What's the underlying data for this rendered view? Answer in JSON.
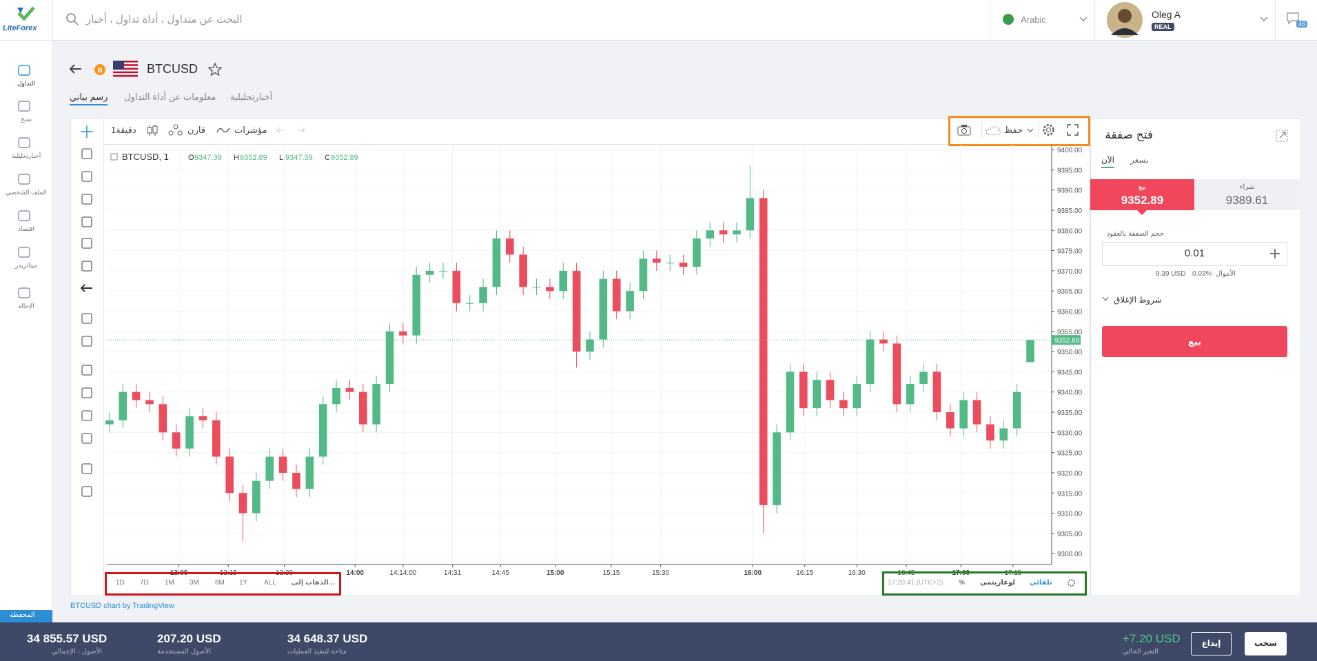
{
  "top_bar": {
    "brand": "LiteForex",
    "search_placeholder": "البحث عن متداول ، أداة تداول ، أخبار",
    "language": "Arabic",
    "user_name": "Oleg A",
    "account_type": "REAL",
    "notifications": 46
  },
  "sidebar": {
    "items": [
      "التداول",
      "نسخ",
      "أخبارتحليلية",
      "الملف الشخصي",
      "اقتصاد",
      "ميتاتريدر",
      "الإحالة"
    ],
    "portfolio": "المحفظة"
  },
  "instrument": {
    "symbol": "BTCUSD",
    "tabs": [
      "رسم بياني",
      "معلومات عن أداة التداول",
      "أخبارتحليلية"
    ]
  },
  "toolbar": {
    "interval": "1دقيقة",
    "compare": "قارن",
    "indicators": "مؤشرات",
    "save": "حفظ"
  },
  "chart_data": {
    "type": "candlestick",
    "symbol_label": "BTCUSD, 1",
    "ohlc_labels": [
      "O",
      "H",
      "L",
      "C"
    ],
    "up_color": "#53b987",
    "down_color": "#eb4d5c",
    "grid": true,
    "xlim": [
      -0.2,
      70.6
    ],
    "xticks": [
      {
        "value": 5.2,
        "label": "13:00"
      },
      {
        "value": 8.9,
        "label": "13:15"
      },
      {
        "value": 13.1,
        "label": "13:30"
      },
      {
        "value": 18.4,
        "label": "14:00"
      },
      {
        "value": 22,
        "label": "14:14:00"
      },
      {
        "value": 25.7,
        "label": "14:31"
      },
      {
        "value": 29.3,
        "label": "14:45"
      },
      {
        "value": 33.4,
        "label": "15:00"
      },
      {
        "value": 37.6,
        "label": "15:15"
      },
      {
        "value": 41.3,
        "label": "15:30"
      },
      {
        "value": 48.2,
        "label": "16:00"
      },
      {
        "value": 52.1,
        "label": "16:15"
      },
      {
        "value": 56,
        "label": "16:30"
      },
      {
        "value": 59.7,
        "label": "16:45"
      },
      {
        "value": 63.8,
        "label": "17:00"
      },
      {
        "value": 67.7,
        "label": "17:15"
      }
    ],
    "ylim": [
      9297.3,
      9401.2
    ],
    "yticks": [
      {
        "value": 9300,
        "label": "9300.00"
      },
      {
        "value": 9305,
        "label": "9305.00"
      },
      {
        "value": 9310,
        "label": "9310.00"
      },
      {
        "value": 9315,
        "label": "9315.00"
      },
      {
        "value": 9320,
        "label": "9320.00"
      },
      {
        "value": 9325,
        "label": "9325.00"
      },
      {
        "value": 9330,
        "label": "9330.00"
      },
      {
        "value": 9335,
        "label": "9335.00"
      },
      {
        "value": 9340,
        "label": "9340.00"
      },
      {
        "value": 9345,
        "label": "9345.00"
      },
      {
        "value": 9350,
        "label": "9350.00"
      },
      {
        "value": 9355,
        "label": "9355.00"
      },
      {
        "value": 9360,
        "label": "9360.00"
      },
      {
        "value": 9365,
        "label": "9365.00"
      },
      {
        "value": 9370,
        "label": "9370.00"
      },
      {
        "value": 9375,
        "label": "9375.00"
      },
      {
        "value": 9380,
        "label": "9380.00"
      },
      {
        "value": 9385,
        "label": "9385.00"
      },
      {
        "value": 9390,
        "label": "9390.00"
      },
      {
        "value": 9395,
        "label": "9395.00"
      },
      {
        "value": 9400,
        "label": "9400.00"
      }
    ],
    "open": [
      9332,
      9333,
      9340,
      9338,
      9337,
      9330,
      9326,
      9334,
      9333,
      9324,
      9315,
      9310,
      9318,
      9324,
      9320,
      9316,
      9324,
      9337,
      9341,
      9340,
      9332,
      9342,
      9355,
      9354,
      9369,
      9370,
      9370,
      9362,
      9362,
      9366,
      9378,
      9374,
      9366,
      9366,
      9365,
      9370,
      9350,
      9353,
      9368,
      9360,
      9365,
      9373,
      9372,
      9372,
      9371,
      9378,
      9380,
      9379,
      9380,
      9388,
      9312,
      9330,
      9345,
      9336,
      9343,
      9338,
      9336,
      9342,
      9353,
      9352,
      9337,
      9342,
      9345,
      9335,
      9331,
      9338,
      9332,
      9328,
      9331,
      9347.39
    ],
    "high": [
      9335,
      9342,
      9342,
      9340,
      9339,
      9332,
      9336,
      9336,
      9335,
      9326,
      9317,
      9320,
      9326,
      9326,
      9322,
      9326,
      9339,
      9343,
      9343,
      9342,
      9344,
      9357,
      9357,
      9371,
      9372,
      9372,
      9372,
      9364,
      9368,
      9380,
      9380,
      9376,
      9368,
      9368,
      9372,
      9372,
      9355,
      9370,
      9370,
      9367,
      9375,
      9375,
      9374,
      9374,
      9380,
      9382,
      9382,
      9382,
      9396,
      9390,
      9332,
      9347,
      9347,
      9345,
      9345,
      9340,
      9344,
      9355,
      9355,
      9354,
      9344,
      9347,
      9347,
      9337,
      9340,
      9340,
      9334,
      9333,
      9342,
      9352.89
    ],
    "low": [
      9330,
      9331,
      9336,
      9335,
      9328,
      9324,
      9324,
      9331,
      9322,
      9313,
      9303,
      9308,
      9316,
      9318,
      9314,
      9314,
      9322,
      9335,
      9338,
      9330,
      9330,
      9340,
      9352,
      9352,
      9367,
      9368,
      9360,
      9360,
      9360,
      9364,
      9372,
      9364,
      9364,
      9363,
      9363,
      9346,
      9348,
      9351,
      9358,
      9358,
      9363,
      9370,
      9370,
      9369,
      9369,
      9376,
      9377,
      9377,
      9378,
      9305,
      9310,
      9328,
      9334,
      9334,
      9336,
      9334,
      9334,
      9340,
      9350,
      9335,
      9335,
      9340,
      9333,
      9329,
      9329,
      9330,
      9326,
      9326,
      9329,
      9347.39
    ],
    "close": [
      9333,
      9340,
      9338,
      9337,
      9330,
      9326,
      9334,
      9333,
      9324,
      9315,
      9310,
      9318,
      9324,
      9320,
      9316,
      9324,
      9337,
      9341,
      9340,
      9332,
      9342,
      9355,
      9354,
      9369,
      9370,
      9370,
      9362,
      9362,
      9366,
      9378,
      9374,
      9366,
      9366,
      9365,
      9370,
      9350,
      9353,
      9368,
      9360,
      9365,
      9373,
      9372,
      9372,
      9371,
      9378,
      9380,
      9379,
      9380,
      9388,
      9312,
      9330,
      9345,
      9336,
      9343,
      9338,
      9336,
      9342,
      9353,
      9352,
      9337,
      9342,
      9345,
      9335,
      9331,
      9338,
      9332,
      9328,
      9331,
      9340,
      9352.89
    ]
  },
  "range_bar": {
    "ranges": [
      "1D",
      "7D",
      "1M",
      "3M",
      "6M",
      "1Y",
      "ALL"
    ],
    "goto": "الذهاب إلى...",
    "time": "17:20:41 (UTC+2)",
    "percent": "%",
    "log": "لوغاريتمي",
    "auto": "تلقائي"
  },
  "attribution": "BTCUSD chart by TradingView",
  "order_panel": {
    "title": "فتح صفقة",
    "mode_now": "الآن",
    "mode_price": "بسعر",
    "sell_label": "بيع",
    "sell_price": 9352.89,
    "buy_label": "شراء",
    "buy_price": 9389.61,
    "volume_label": "حجم الصفقة بالعقود",
    "volume": 0.01,
    "margin": "9.39 USD",
    "funds_percent": "0.03%",
    "funds_label": "الأموال",
    "close_conditions": "شروط الإغلاق",
    "submit": "بيع"
  },
  "bottom_bar": {
    "total": "34 855.57 USD",
    "total_label": "الأصول ، الإجمالي",
    "used": "207.20 USD",
    "used_label": "الأصول المستخدمة",
    "available": "34 648.37 USD",
    "available_label": "متاحة لتنفيذ العمليات",
    "change": "+7.20 USD",
    "change_label": "التغير الحالي",
    "deposit": "إيداع",
    "withdraw": "سحب"
  }
}
